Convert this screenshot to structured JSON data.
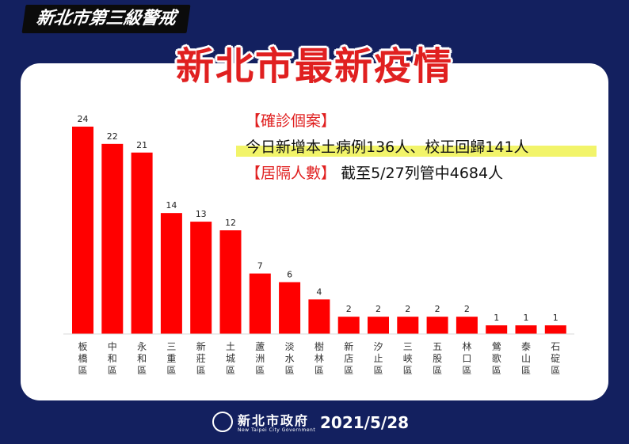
{
  "header": {
    "top_title": "新北市第三級警戒",
    "main_title": "新北市最新疫情"
  },
  "info": {
    "confirmed_label": "【確診個案】",
    "confirmed_text": "今日新增本土病例136人、校正回歸141人",
    "quarantine_label": "【居隔人數】",
    "quarantine_text": "截至5/27列管中4684人"
  },
  "footer": {
    "logo_name": "新北市政府",
    "logo_sub": "New Taipei City Government",
    "date": "2021/5/28"
  },
  "colors": {
    "background": "#13205f",
    "bar": "#ff0000",
    "title_red": "#e02020",
    "highlight": "#f2f46a"
  },
  "chart_data": {
    "type": "bar",
    "categories": [
      "板橋區",
      "中和區",
      "永和區",
      "三重區",
      "新莊區",
      "土城區",
      "蘆洲區",
      "淡水區",
      "樹林區",
      "新店區",
      "汐止區",
      "三峽區",
      "五股區",
      "林口區",
      "鶯歌區",
      "泰山區",
      "石碇區"
    ],
    "values": [
      24,
      22,
      21,
      14,
      13,
      12,
      7,
      6,
      4,
      2,
      2,
      2,
      2,
      2,
      1,
      1,
      1
    ],
    "title": "",
    "xlabel": "",
    "ylabel": "",
    "ylim": [
      0,
      24
    ],
    "legend": "none",
    "grid": false
  }
}
